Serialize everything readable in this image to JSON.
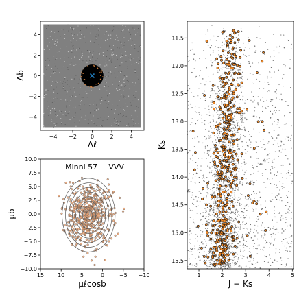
{
  "chart_data": [
    {
      "type": "scatter",
      "panel": "sky-map",
      "xlabel": "Δℓ",
      "ylabel": "Δb",
      "xlim": [
        -5.3,
        5.3
      ],
      "ylim": [
        -5.3,
        5.3
      ],
      "xticks": [
        -4,
        -2,
        0,
        2,
        4
      ],
      "yticks": [
        -4,
        -2,
        0,
        2,
        4
      ],
      "xtick_labels": [
        "−4",
        "−2",
        "0",
        "2",
        "4"
      ],
      "ytick_labels": [
        "−4",
        "−2",
        "0",
        "2",
        "4"
      ],
      "field_extent": [
        -5,
        5
      ],
      "field_color": "#808080",
      "selection_circle": {
        "center": [
          0,
          0
        ],
        "radius": 1.15,
        "color": "#000000"
      },
      "cluster_center": {
        "x": 0,
        "y": 0,
        "marker": "x",
        "color": "#1f77b4"
      }
    },
    {
      "type": "scatter",
      "panel": "proper-motion",
      "title": "Minni 57 − VVV",
      "xlabel": "μℓcosb",
      "ylabel": "μb",
      "xlim": [
        15,
        -10
      ],
      "ylim": [
        -10,
        10
      ],
      "xticks": [
        15,
        10,
        5,
        0,
        -5,
        -10
      ],
      "yticks": [
        -10.0,
        -7.5,
        -5.0,
        -2.5,
        0.0,
        2.5,
        5.0,
        7.5,
        10.0
      ],
      "xtick_labels": [
        "15",
        "10",
        "5",
        "0",
        "−5",
        "−10"
      ],
      "ytick_labels": [
        "−10.0",
        "−7.5",
        "−5.0",
        "−2.5",
        "0.0",
        "2.5",
        "5.0",
        "7.5",
        "10.0"
      ],
      "cluster_pm": {
        "x": 3.2,
        "y": -0.2
      },
      "contour_radii": [
        0.8,
        1.6,
        2.4,
        3.2,
        4.0,
        4.8,
        5.6,
        6.4
      ],
      "point_color": "#e8a070",
      "marker_edge": "#555555"
    },
    {
      "type": "scatter",
      "panel": "cmd",
      "xlabel": "J − Ks",
      "ylabel": "Ks",
      "xlim": [
        0.5,
        5.05
      ],
      "ylim": [
        15.65,
        11.2
      ],
      "xticks": [
        1,
        2,
        3,
        4,
        5
      ],
      "yticks": [
        11.5,
        12.0,
        12.5,
        13.0,
        13.5,
        14.0,
        14.5,
        15.0,
        15.5
      ],
      "xtick_labels": [
        "1",
        "2",
        "3",
        "4",
        "5"
      ],
      "ytick_labels": [
        "11.5",
        "12.0",
        "12.5",
        "13.0",
        "13.5",
        "14.0",
        "14.5",
        "15.0",
        "15.5"
      ],
      "field_color": "#7a7a7a",
      "member_color": "#f08a2a",
      "member_edge": "#111111",
      "sequence_color_top": 2.4,
      "sequence_color_bottom": 1.95
    }
  ]
}
